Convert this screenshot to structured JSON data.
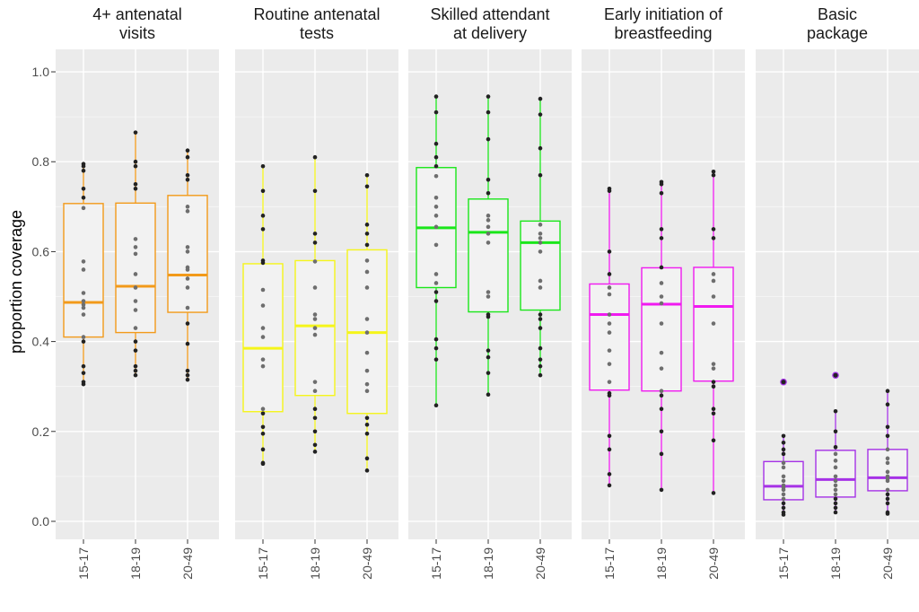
{
  "chart_data": {
    "type": "boxplot",
    "ylabel": "proportion coverage",
    "xlabel": "",
    "ylim": [
      -0.04,
      1.05
    ],
    "y_ticks": [
      "0.0",
      "0.2",
      "0.4",
      "0.6",
      "0.8",
      "1.0"
    ],
    "y_tick_values": [
      0.0,
      0.2,
      0.4,
      0.6,
      0.8,
      1.0
    ],
    "categories": [
      "15-17",
      "18-19",
      "20-49"
    ],
    "grid": true,
    "legend": "none",
    "panels": [
      {
        "title": [
          "4+ antenatal",
          "visits"
        ],
        "color": "#F29A1A",
        "boxes": [
          {
            "min": 0.305,
            "q1": 0.41,
            "median": 0.487,
            "q3": 0.707,
            "max": 0.795,
            "points": [
              0.795,
              0.79,
              0.78,
              0.74,
              0.72,
              0.697,
              0.578,
              0.56,
              0.508,
              0.49,
              0.482,
              0.475,
              0.46,
              0.41,
              0.4,
              0.345,
              0.33,
              0.31,
              0.305
            ]
          },
          {
            "min": 0.325,
            "q1": 0.42,
            "median": 0.523,
            "q3": 0.708,
            "max": 0.865,
            "points": [
              0.865,
              0.8,
              0.79,
              0.75,
              0.74,
              0.628,
              0.61,
              0.595,
              0.55,
              0.52,
              0.49,
              0.47,
              0.43,
              0.4,
              0.38,
              0.345,
              0.335,
              0.325
            ]
          },
          {
            "min": 0.315,
            "q1": 0.465,
            "median": 0.548,
            "q3": 0.725,
            "max": 0.825,
            "points": [
              0.825,
              0.81,
              0.77,
              0.76,
              0.7,
              0.69,
              0.61,
              0.6,
              0.565,
              0.56,
              0.54,
              0.52,
              0.475,
              0.44,
              0.395,
              0.335,
              0.325,
              0.315
            ]
          }
        ]
      },
      {
        "title": [
          "Routine antenatal",
          "tests"
        ],
        "color": "#F5F51A",
        "boxes": [
          {
            "min": 0.128,
            "q1": 0.244,
            "median": 0.385,
            "q3": 0.573,
            "max": 0.79,
            "points": [
              0.79,
              0.735,
              0.68,
              0.65,
              0.58,
              0.575,
              0.515,
              0.48,
              0.43,
              0.41,
              0.36,
              0.345,
              0.25,
              0.24,
              0.21,
              0.195,
              0.16,
              0.13,
              0.128
            ]
          },
          {
            "min": 0.155,
            "q1": 0.28,
            "median": 0.435,
            "q3": 0.58,
            "max": 0.81,
            "points": [
              0.81,
              0.735,
              0.64,
              0.62,
              0.578,
              0.52,
              0.46,
              0.45,
              0.43,
              0.415,
              0.31,
              0.29,
              0.25,
              0.23,
              0.2,
              0.17,
              0.155
            ]
          },
          {
            "min": 0.113,
            "q1": 0.24,
            "median": 0.42,
            "q3": 0.604,
            "max": 0.77,
            "points": [
              0.77,
              0.745,
              0.66,
              0.64,
              0.615,
              0.58,
              0.555,
              0.52,
              0.45,
              0.42,
              0.375,
              0.335,
              0.305,
              0.29,
              0.23,
              0.215,
              0.195,
              0.14,
              0.113
            ]
          }
        ]
      },
      {
        "title": [
          "Skilled attendant",
          "at delivery"
        ],
        "color": "#1AE61A",
        "boxes": [
          {
            "min": 0.258,
            "q1": 0.52,
            "median": 0.653,
            "q3": 0.787,
            "max": 0.945,
            "points": [
              0.945,
              0.91,
              0.84,
              0.81,
              0.79,
              0.768,
              0.72,
              0.7,
              0.68,
              0.655,
              0.615,
              0.55,
              0.53,
              0.51,
              0.49,
              0.405,
              0.385,
              0.36,
              0.258
            ]
          },
          {
            "min": 0.282,
            "q1": 0.466,
            "median": 0.643,
            "q3": 0.717,
            "max": 0.945,
            "points": [
              0.945,
              0.91,
              0.85,
              0.76,
              0.73,
              0.68,
              0.67,
              0.655,
              0.64,
              0.62,
              0.51,
              0.5,
              0.46,
              0.455,
              0.38,
              0.365,
              0.33,
              0.282
            ]
          },
          {
            "min": 0.325,
            "q1": 0.47,
            "median": 0.62,
            "q3": 0.668,
            "max": 0.94,
            "points": [
              0.94,
              0.905,
              0.83,
              0.77,
              0.66,
              0.64,
              0.63,
              0.62,
              0.6,
              0.535,
              0.52,
              0.46,
              0.45,
              0.43,
              0.385,
              0.36,
              0.345,
              0.325
            ]
          }
        ]
      },
      {
        "title": [
          "Early initiation of",
          "breastfeeding"
        ],
        "color": "#F01AF0",
        "boxes": [
          {
            "min": 0.08,
            "q1": 0.292,
            "median": 0.46,
            "q3": 0.528,
            "max": 0.74,
            "points": [
              0.74,
              0.735,
              0.6,
              0.55,
              0.52,
              0.505,
              0.46,
              0.44,
              0.42,
              0.38,
              0.35,
              0.31,
              0.285,
              0.28,
              0.19,
              0.16,
              0.105,
              0.08
            ]
          },
          {
            "min": 0.07,
            "q1": 0.29,
            "median": 0.483,
            "q3": 0.564,
            "max": 0.755,
            "points": [
              0.755,
              0.75,
              0.73,
              0.65,
              0.63,
              0.565,
              0.53,
              0.5,
              0.485,
              0.44,
              0.375,
              0.34,
              0.29,
              0.28,
              0.25,
              0.2,
              0.15,
              0.07
            ]
          },
          {
            "min": 0.063,
            "q1": 0.312,
            "median": 0.478,
            "q3": 0.565,
            "max": 0.778,
            "points": [
              0.778,
              0.77,
              0.65,
              0.63,
              0.55,
              0.535,
              0.5,
              0.44,
              0.35,
              0.34,
              0.31,
              0.3,
              0.25,
              0.24,
              0.18,
              0.063
            ]
          }
        ]
      },
      {
        "title": [
          "Basic",
          "package"
        ],
        "color": "#A632E6",
        "boxes": [
          {
            "min": 0.015,
            "q1": 0.048,
            "median": 0.078,
            "q3": 0.133,
            "max": 0.19,
            "outliers": [
              0.31
            ],
            "points": [
              0.31,
              0.19,
              0.175,
              0.16,
              0.15,
              0.13,
              0.12,
              0.1,
              0.09,
              0.08,
              0.075,
              0.07,
              0.06,
              0.05,
              0.04,
              0.03,
              0.02,
              0.015
            ]
          },
          {
            "min": 0.02,
            "q1": 0.054,
            "median": 0.093,
            "q3": 0.158,
            "max": 0.245,
            "outliers": [
              0.325
            ],
            "points": [
              0.325,
              0.245,
              0.2,
              0.165,
              0.15,
              0.135,
              0.12,
              0.1,
              0.09,
              0.08,
              0.07,
              0.06,
              0.05,
              0.04,
              0.03,
              0.02
            ]
          },
          {
            "min": 0.017,
            "q1": 0.068,
            "median": 0.097,
            "q3": 0.16,
            "max": 0.29,
            "points": [
              0.29,
              0.26,
              0.21,
              0.19,
              0.16,
              0.14,
              0.13,
              0.11,
              0.1,
              0.095,
              0.09,
              0.07,
              0.06,
              0.05,
              0.04,
              0.02,
              0.017
            ]
          }
        ]
      }
    ]
  }
}
